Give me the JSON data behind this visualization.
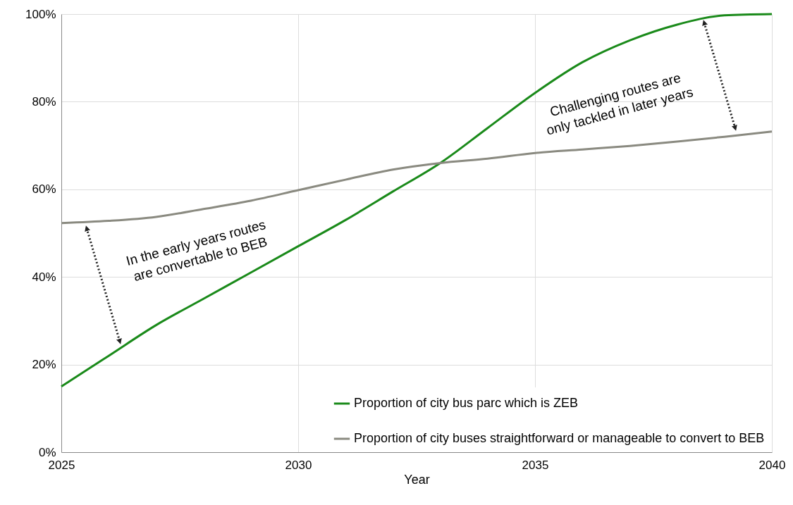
{
  "chart_data": {
    "type": "line",
    "xlabel": "Year",
    "x": [
      2025,
      2026,
      2027,
      2028,
      2029,
      2030,
      2031,
      2032,
      2033,
      2034,
      2035,
      2036,
      2037,
      2038,
      2039,
      2040
    ],
    "xlim": [
      2025,
      2040
    ],
    "xticks": [
      2025,
      2030,
      2035,
      2040
    ],
    "ylim": [
      0,
      100
    ],
    "yticks": [
      {
        "value": 0,
        "label": "0%"
      },
      {
        "value": 20,
        "label": "20%"
      },
      {
        "value": 40,
        "label": "40%"
      },
      {
        "value": 60,
        "label": "60%"
      },
      {
        "value": 80,
        "label": "80%"
      },
      {
        "value": 100,
        "label": "100%"
      }
    ],
    "series": [
      {
        "name": "Proportion of city bus parc which is ZEB",
        "color": "#1a8a1a",
        "values": [
          15,
          22,
          29,
          35,
          41,
          47,
          53,
          59.5,
          66,
          74,
          82,
          89,
          94,
          97.6,
          99.7,
          100
        ]
      },
      {
        "name": "Proportion of city buses straightforward or manageable to convert to BEB",
        "color": "#8a8a80",
        "values": [
          52.3,
          52.8,
          53.7,
          55.5,
          57.4,
          59.8,
          62.2,
          64.5,
          66,
          67,
          68.3,
          69.1,
          69.9,
          70.9,
          72,
          73.2
        ]
      }
    ],
    "annotations": [
      "In the early years routes are convertable to BEB",
      "Challenging routes are only tackled in later years"
    ],
    "grid": true,
    "legend": "bottom right"
  }
}
